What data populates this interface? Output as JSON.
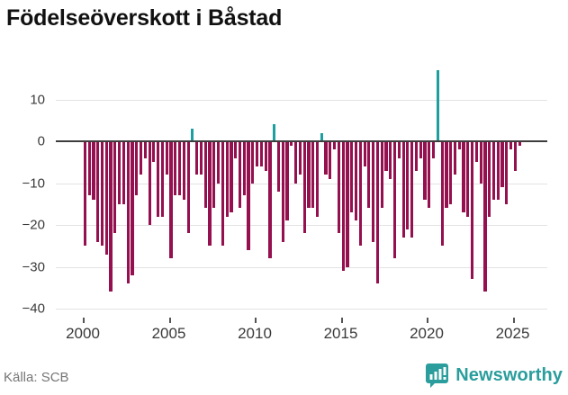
{
  "header": {
    "title": "Födelseöverskott i Båstad"
  },
  "footer": {
    "source": "Källa: SCB",
    "logo_text": "Newsworthy"
  },
  "colors": {
    "negative_bar": "#94104e",
    "positive_bar": "#1e9e9e",
    "zero_line": "#3d3d3d",
    "gridline": "#e3e3e3",
    "logo_teal": "#2a9d9c"
  },
  "chart_data": {
    "type": "bar",
    "title": "Födelseöverskott i Båstad",
    "source": "Källa: SCB",
    "period": "quarterly",
    "x_start": "2000 Q1",
    "x_end": "2025 Q2",
    "start_year": 2000,
    "values": [
      -25,
      -13,
      -14,
      -24,
      -25,
      -27,
      -36,
      -22,
      -15,
      -15,
      -34,
      -32,
      -13,
      -8,
      -4,
      -20,
      -5,
      -18,
      -18,
      -8,
      -28,
      -13,
      -13,
      -14,
      -22,
      3,
      -8,
      -8,
      -16,
      -25,
      -16,
      -10,
      -25,
      -18,
      -17,
      -4,
      -16,
      -13,
      -26,
      -10,
      -6,
      -6,
      -7,
      -28,
      4,
      -12,
      -24,
      -19,
      -1,
      -10,
      -8,
      -22,
      -16,
      -16,
      -18,
      2,
      -8,
      -9,
      -2,
      -22,
      -31,
      -30,
      -17,
      -19,
      -25,
      -6,
      -16,
      -24,
      -34,
      -16,
      -7,
      -9,
      -28,
      -4,
      -23,
      -21,
      -23,
      -7,
      -4,
      -14,
      -16,
      -4,
      17,
      -25,
      -16,
      -15,
      -8,
      -2,
      -17,
      -18,
      -33,
      -5,
      -10,
      -36,
      -18,
      -14,
      -14,
      -11,
      -15,
      -2,
      -7,
      -1
    ],
    "ylim": [
      -42,
      18
    ],
    "yticks": {
      "values": [
        10,
        0,
        -10,
        -20,
        -30,
        -40
      ],
      "labels": [
        "10",
        "0",
        "−10",
        "−20",
        "−30",
        "−40"
      ]
    },
    "xticks": {
      "values": [
        2000,
        2005,
        2010,
        2015,
        2020,
        2025
      ],
      "labels": [
        "2000",
        "2005",
        "2010",
        "2015",
        "2020",
        "2025"
      ]
    },
    "grid": "horizontal",
    "legend": "none"
  }
}
